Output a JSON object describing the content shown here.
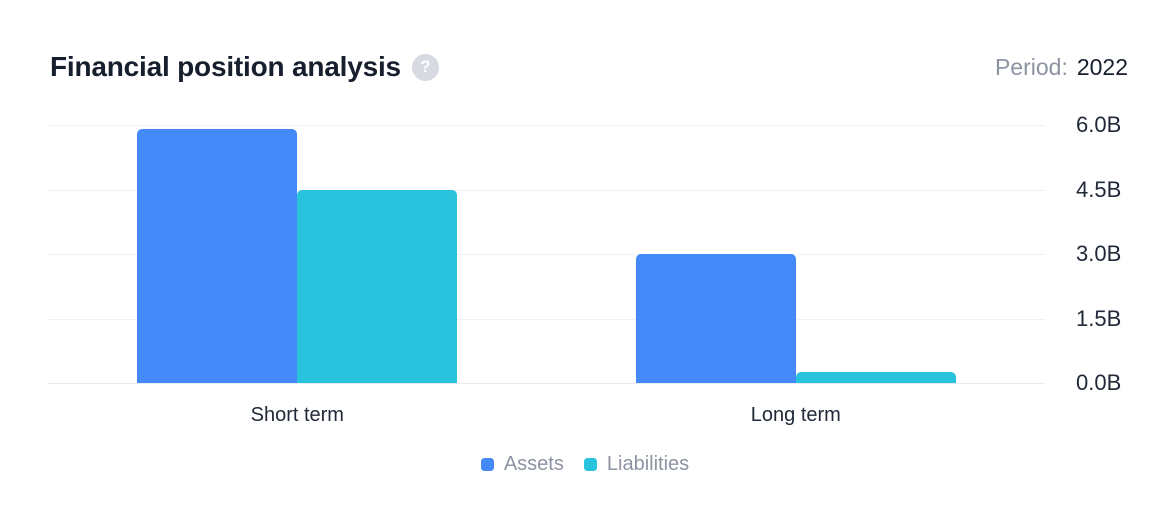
{
  "header": {
    "title": "Financial position analysis",
    "help_glyph": "?",
    "period_label": "Period:",
    "period_value": "2022"
  },
  "colors": {
    "assets": "#4489f8",
    "liabilities": "#2ac3dd",
    "title_text": "#171e2e",
    "muted_text": "#8d93a3",
    "axis_text": "#212838",
    "gridline": "#eef1f8",
    "baseline": "#e7eaf2",
    "help_bg": "#d7dae3",
    "background": "#ffffff"
  },
  "chart_data": {
    "type": "bar",
    "title": "Financial position analysis",
    "categories": [
      "Short term",
      "Long term"
    ],
    "series": [
      {
        "name": "Assets",
        "color": "#4489f8",
        "values": [
          5.9,
          3.0
        ]
      },
      {
        "name": "Liabilities",
        "color": "#2ac3dd",
        "values": [
          4.5,
          0.25
        ]
      }
    ],
    "unit": "B",
    "ylim": [
      0,
      6.0
    ],
    "yticks": [
      6.0,
      4.5,
      3.0,
      1.5,
      0.0
    ],
    "ytick_labels": [
      "6.0B",
      "4.5B",
      "3.0B",
      "1.5B",
      "0.0B"
    ],
    "y_axis_side": "right",
    "grid": "horizontal",
    "legend_position": "bottom"
  }
}
